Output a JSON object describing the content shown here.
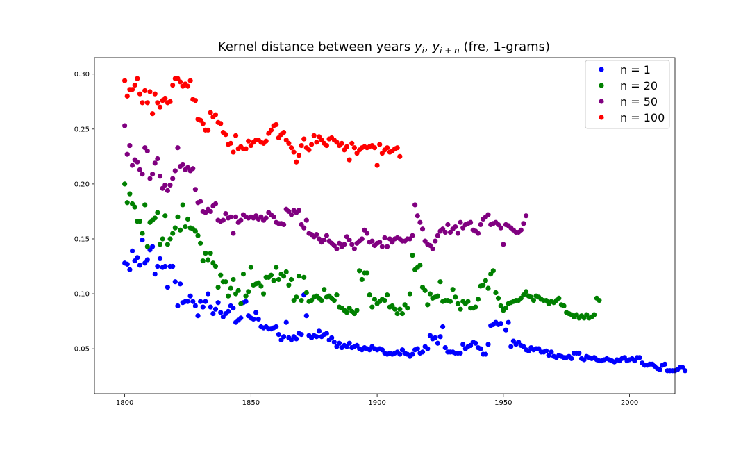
{
  "chart_data": {
    "type": "scatter",
    "title_parts": [
      "Kernel distance between years ",
      "y",
      "i",
      ", ",
      "y",
      "i + n",
      " (fre, 1-grams)"
    ],
    "xlabel": "",
    "ylabel": "",
    "xlim": [
      1788,
      2018
    ],
    "ylim": [
      0.009,
      0.315
    ],
    "x_ticks": [
      1800,
      1850,
      1900,
      1950,
      2000
    ],
    "y_ticks": [
      0.05,
      0.1,
      0.15,
      0.2,
      0.25,
      0.3
    ],
    "y_tick_labels": [
      "0.05",
      "0.10",
      "0.15",
      "0.20",
      "0.25",
      "0.30"
    ],
    "legend_position": "top-right",
    "grid": false,
    "series": [
      {
        "name": "n = 1",
        "color": "#0000ff",
        "x_start": 1800,
        "values": [
          0.128,
          0.127,
          0.122,
          0.139,
          0.13,
          0.133,
          0.126,
          0.149,
          0.128,
          0.131,
          0.14,
          0.143,
          0.118,
          0.125,
          0.132,
          0.124,
          0.125,
          0.106,
          0.125,
          0.125,
          0.111,
          0.089,
          0.109,
          0.092,
          0.093,
          0.093,
          0.098,
          0.093,
          0.089,
          0.08,
          0.093,
          0.088,
          0.093,
          0.1,
          0.088,
          0.082,
          0.086,
          0.092,
          0.083,
          0.079,
          0.082,
          0.084,
          0.089,
          0.087,
          0.074,
          0.076,
          0.078,
          0.092,
          0.093,
          0.08,
          0.078,
          0.077,
          0.083,
          0.077,
          0.07,
          0.069,
          0.07,
          0.068,
          0.068,
          0.069,
          0.07,
          0.063,
          0.058,
          0.061,
          0.074,
          0.06,
          0.058,
          0.061,
          0.059,
          0.064,
          0.063,
          0.099,
          0.08,
          0.062,
          0.06,
          0.062,
          0.061,
          0.066,
          0.061,
          0.063,
          0.064,
          0.058,
          0.06,
          0.056,
          0.052,
          0.055,
          0.051,
          0.053,
          0.052,
          0.055,
          0.051,
          0.052,
          0.053,
          0.05,
          0.049,
          0.051,
          0.05,
          0.049,
          0.052,
          0.05,
          0.049,
          0.05,
          0.049,
          0.046,
          0.045,
          0.046,
          0.045,
          0.046,
          0.047,
          0.045,
          0.049,
          0.046,
          0.045,
          0.043,
          0.045,
          0.049,
          0.05,
          0.046,
          0.047,
          0.052,
          0.05,
          0.062,
          0.059,
          0.06,
          0.055,
          0.061,
          0.07,
          0.051,
          0.047,
          0.047,
          0.047,
          0.046,
          0.046,
          0.046,
          0.054,
          0.05,
          0.052,
          0.053,
          0.056,
          0.055,
          0.051,
          0.05,
          0.045,
          0.045,
          0.054,
          0.071,
          0.072,
          0.074,
          0.072,
          0.073,
          0.086,
          0.067,
          0.074,
          0.052,
          0.057,
          0.054,
          0.056,
          0.053,
          0.052,
          0.049,
          0.048,
          0.051,
          0.049,
          0.05,
          0.05,
          0.047,
          0.047,
          0.048,
          0.044,
          0.047,
          0.043,
          0.042,
          0.044,
          0.043,
          0.042,
          0.042,
          0.043,
          0.041,
          0.046,
          0.046,
          0.046,
          0.041,
          0.04,
          0.043,
          0.042,
          0.041,
          0.042,
          0.04,
          0.039,
          0.039,
          0.04,
          0.041,
          0.04,
          0.039,
          0.038,
          0.04,
          0.039,
          0.041,
          0.042,
          0.039,
          0.04,
          0.041,
          0.039,
          0.042,
          0.042,
          0.037,
          0.035,
          0.035,
          0.036,
          0.036,
          0.034,
          0.032,
          0.031,
          0.035,
          0.036,
          0.03,
          0.03,
          0.03,
          0.03,
          0.031,
          0.033,
          0.033,
          0.03
        ]
      },
      {
        "name": "n = 20",
        "color": "#008000",
        "x_start": 1800,
        "values": [
          0.2,
          0.183,
          0.191,
          0.182,
          0.179,
          0.166,
          0.166,
          0.155,
          0.181,
          0.143,
          0.165,
          0.167,
          0.169,
          0.174,
          0.145,
          0.15,
          0.171,
          0.145,
          0.15,
          0.155,
          0.16,
          0.17,
          0.158,
          0.181,
          0.161,
          0.168,
          0.16,
          0.159,
          0.157,
          0.153,
          0.146,
          0.13,
          0.137,
          0.131,
          0.137,
          0.128,
          0.125,
          0.106,
          0.117,
          0.111,
          0.111,
          0.098,
          0.105,
          0.113,
          0.1,
          0.103,
          0.091,
          0.118,
          0.098,
          0.102,
          0.124,
          0.108,
          0.109,
          0.11,
          0.107,
          0.1,
          0.115,
          0.115,
          0.117,
          0.112,
          0.124,
          0.113,
          0.118,
          0.116,
          0.12,
          0.108,
          0.113,
          0.094,
          0.097,
          0.116,
          0.094,
          0.115,
          0.101,
          0.093,
          0.094,
          0.097,
          0.098,
          0.096,
          0.094,
          0.104,
          0.097,
          0.098,
          0.096,
          0.094,
          0.099,
          0.088,
          0.087,
          0.085,
          0.083,
          0.087,
          0.084,
          0.082,
          0.085,
          0.121,
          0.113,
          0.119,
          0.119,
          0.099,
          0.088,
          0.095,
          0.091,
          0.093,
          0.095,
          0.094,
          0.099,
          0.088,
          0.089,
          0.086,
          0.082,
          0.086,
          0.082,
          0.09,
          0.087,
          0.1,
          0.135,
          0.122,
          0.124,
          0.126,
          0.106,
          0.103,
          0.09,
          0.1,
          0.096,
          0.097,
          0.098,
          0.111,
          0.093,
          0.094,
          0.094,
          0.093,
          0.104,
          0.097,
          0.091,
          0.086,
          0.093,
          0.091,
          0.093,
          0.087,
          0.087,
          0.088,
          0.095,
          0.107,
          0.108,
          0.112,
          0.105,
          0.118,
          0.121,
          0.101,
          0.096,
          0.089,
          0.085,
          0.087,
          0.091,
          0.092,
          0.093,
          0.094,
          0.094,
          0.096,
          0.099,
          0.102,
          0.098,
          0.097,
          0.094,
          0.098,
          0.097,
          0.095,
          0.094,
          0.094,
          0.091,
          0.093,
          0.092,
          0.094,
          0.096,
          0.09,
          0.089,
          0.083,
          0.082,
          0.081,
          0.079,
          0.081,
          0.078,
          0.08,
          0.078,
          0.081,
          0.078,
          0.079,
          0.081,
          0.096,
          0.094
        ]
      },
      {
        "name": "n = 50",
        "color": "#800080",
        "x_start": 1800,
        "values": [
          0.253,
          0.227,
          0.235,
          0.217,
          0.222,
          0.22,
          0.213,
          0.209,
          0.233,
          0.23,
          0.205,
          0.209,
          0.219,
          0.223,
          0.207,
          0.196,
          0.199,
          0.194,
          0.199,
          0.205,
          0.212,
          0.233,
          0.216,
          0.218,
          0.213,
          0.215,
          0.212,
          0.214,
          0.195,
          0.183,
          0.184,
          0.175,
          0.174,
          0.177,
          0.175,
          0.18,
          0.182,
          0.167,
          0.166,
          0.167,
          0.173,
          0.169,
          0.17,
          0.155,
          0.17,
          0.165,
          0.167,
          0.172,
          0.17,
          0.169,
          0.17,
          0.169,
          0.171,
          0.168,
          0.17,
          0.167,
          0.169,
          0.174,
          0.172,
          0.17,
          0.165,
          0.164,
          0.164,
          0.163,
          0.177,
          0.175,
          0.172,
          0.176,
          0.174,
          0.176,
          0.163,
          0.16,
          0.167,
          0.155,
          0.154,
          0.152,
          0.154,
          0.15,
          0.147,
          0.149,
          0.153,
          0.148,
          0.146,
          0.144,
          0.141,
          0.146,
          0.143,
          0.145,
          0.152,
          0.149,
          0.145,
          0.141,
          0.146,
          0.148,
          0.15,
          0.158,
          0.155,
          0.147,
          0.148,
          0.144,
          0.146,
          0.147,
          0.143,
          0.151,
          0.143,
          0.15,
          0.147,
          0.15,
          0.151,
          0.15,
          0.148,
          0.148,
          0.15,
          0.15,
          0.153,
          0.181,
          0.171,
          0.165,
          0.159,
          0.148,
          0.145,
          0.144,
          0.141,
          0.148,
          0.153,
          0.157,
          0.159,
          0.156,
          0.163,
          0.156,
          0.159,
          0.161,
          0.155,
          0.165,
          0.16,
          0.163,
          0.164,
          0.165,
          0.158,
          0.157,
          0.155,
          0.163,
          0.168,
          0.17,
          0.172,
          0.163,
          0.164,
          0.165,
          0.163,
          0.16,
          0.145,
          0.163,
          0.162,
          0.16,
          0.158,
          0.156,
          0.156,
          0.158,
          0.164,
          0.171
        ]
      },
      {
        "name": "n = 100",
        "color": "#ff0000",
        "x_start": 1800,
        "values": [
          0.294,
          0.28,
          0.286,
          0.286,
          0.29,
          0.296,
          0.282,
          0.274,
          0.285,
          0.274,
          0.284,
          0.264,
          0.282,
          0.274,
          0.27,
          0.276,
          0.278,
          0.274,
          0.275,
          0.29,
          0.296,
          0.296,
          0.293,
          0.289,
          0.291,
          0.289,
          0.294,
          0.277,
          0.276,
          0.259,
          0.258,
          0.255,
          0.249,
          0.249,
          0.265,
          0.261,
          0.263,
          0.256,
          0.255,
          0.247,
          0.245,
          0.236,
          0.237,
          0.229,
          0.244,
          0.232,
          0.234,
          0.232,
          0.232,
          0.239,
          0.235,
          0.238,
          0.24,
          0.24,
          0.238,
          0.237,
          0.239,
          0.246,
          0.249,
          0.253,
          0.254,
          0.242,
          0.245,
          0.247,
          0.24,
          0.237,
          0.233,
          0.229,
          0.22,
          0.226,
          0.235,
          0.241,
          0.233,
          0.231,
          0.236,
          0.244,
          0.238,
          0.243,
          0.24,
          0.237,
          0.235,
          0.241,
          0.242,
          0.24,
          0.238,
          0.235,
          0.237,
          0.231,
          0.234,
          0.222,
          0.237,
          0.233,
          0.228,
          0.231,
          0.233,
          0.234,
          0.233,
          0.234,
          0.235,
          0.233,
          0.217,
          0.236,
          0.228,
          0.231,
          0.233,
          0.229,
          0.23,
          0.232,
          0.233,
          0.225
        ]
      }
    ]
  }
}
